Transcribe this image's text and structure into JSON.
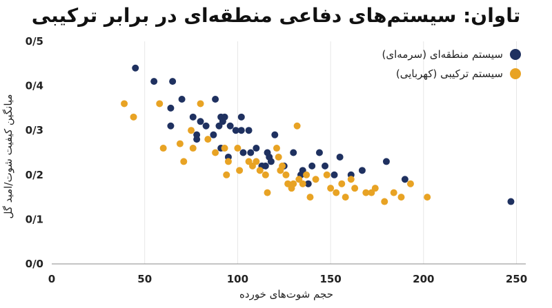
{
  "chart_data": {
    "type": "scatter",
    "title": "تاوان: سیستم‌های دفاعی منطقه‌ای در برابر ترکیبی",
    "xlabel": "حجم شوت‌های خورده",
    "ylabel": "میانگین کیفیت شوت/امید گل",
    "xlim": [
      0,
      255
    ],
    "ylim": [
      0,
      0.5
    ],
    "x_ticks": [
      0,
      50,
      100,
      150,
      200,
      250
    ],
    "x_tick_labels": [
      "0",
      "50",
      "100",
      "150",
      "200",
      "250"
    ],
    "y_ticks": [
      0,
      0.1,
      0.2,
      0.3,
      0.4,
      0.5
    ],
    "y_tick_labels": [
      "0/0",
      "0/1",
      "0/2",
      "0/3",
      "0/4",
      "0/5"
    ],
    "grid": "vertical",
    "legend_position": "top-right",
    "series": [
      {
        "name": "سیستم منطقه‌ای (سرمه‌ای)",
        "color": "#1f3160",
        "points": [
          [
            45,
            0.44
          ],
          [
            55,
            0.41
          ],
          [
            65,
            0.41
          ],
          [
            70,
            0.37
          ],
          [
            64,
            0.35
          ],
          [
            64,
            0.31
          ],
          [
            76,
            0.33
          ],
          [
            80,
            0.32
          ],
          [
            78,
            0.29
          ],
          [
            83,
            0.31
          ],
          [
            78,
            0.28
          ],
          [
            88,
            0.37
          ],
          [
            87,
            0.29
          ],
          [
            90,
            0.31
          ],
          [
            92,
            0.32
          ],
          [
            91,
            0.33
          ],
          [
            93,
            0.33
          ],
          [
            96,
            0.31
          ],
          [
            91,
            0.26
          ],
          [
            95,
            0.24
          ],
          [
            99,
            0.3
          ],
          [
            102,
            0.3
          ],
          [
            102,
            0.33
          ],
          [
            106,
            0.3
          ],
          [
            103,
            0.25
          ],
          [
            107,
            0.25
          ],
          [
            110,
            0.26
          ],
          [
            113,
            0.22
          ],
          [
            115,
            0.22
          ],
          [
            116,
            0.25
          ],
          [
            117,
            0.24
          ],
          [
            120,
            0.29
          ],
          [
            118,
            0.23
          ],
          [
            125,
            0.22
          ],
          [
            130,
            0.25
          ],
          [
            134,
            0.2
          ],
          [
            135,
            0.21
          ],
          [
            140,
            0.22
          ],
          [
            138,
            0.18
          ],
          [
            144,
            0.25
          ],
          [
            147,
            0.22
          ],
          [
            152,
            0.2
          ],
          [
            155,
            0.24
          ],
          [
            161,
            0.2
          ],
          [
            167,
            0.21
          ],
          [
            180,
            0.23
          ],
          [
            190,
            0.19
          ],
          [
            247,
            0.14
          ]
        ]
      },
      {
        "name": "سیستم ترکیبی (کهربایی)",
        "color": "#e8a324",
        "points": [
          [
            39,
            0.36
          ],
          [
            44,
            0.33
          ],
          [
            58,
            0.36
          ],
          [
            60,
            0.26
          ],
          [
            69,
            0.27
          ],
          [
            71,
            0.23
          ],
          [
            75,
            0.3
          ],
          [
            76,
            0.26
          ],
          [
            80,
            0.36
          ],
          [
            84,
            0.28
          ],
          [
            88,
            0.25
          ],
          [
            93,
            0.26
          ],
          [
            94,
            0.2
          ],
          [
            95,
            0.23
          ],
          [
            100,
            0.26
          ],
          [
            101,
            0.21
          ],
          [
            106,
            0.23
          ],
          [
            108,
            0.22
          ],
          [
            110,
            0.23
          ],
          [
            112,
            0.21
          ],
          [
            115,
            0.2
          ],
          [
            116,
            0.16
          ],
          [
            121,
            0.26
          ],
          [
            122,
            0.24
          ],
          [
            123,
            0.21
          ],
          [
            124,
            0.22
          ],
          [
            126,
            0.2
          ],
          [
            127,
            0.18
          ],
          [
            129,
            0.17
          ],
          [
            130,
            0.18
          ],
          [
            132,
            0.31
          ],
          [
            133,
            0.19
          ],
          [
            135,
            0.18
          ],
          [
            137,
            0.2
          ],
          [
            139,
            0.15
          ],
          [
            142,
            0.19
          ],
          [
            148,
            0.2
          ],
          [
            150,
            0.17
          ],
          [
            153,
            0.16
          ],
          [
            156,
            0.18
          ],
          [
            158,
            0.15
          ],
          [
            161,
            0.19
          ],
          [
            163,
            0.17
          ],
          [
            169,
            0.16
          ],
          [
            172,
            0.16
          ],
          [
            174,
            0.17
          ],
          [
            179,
            0.14
          ],
          [
            184,
            0.16
          ],
          [
            188,
            0.15
          ],
          [
            193,
            0.18
          ],
          [
            202,
            0.15
          ]
        ]
      }
    ]
  }
}
